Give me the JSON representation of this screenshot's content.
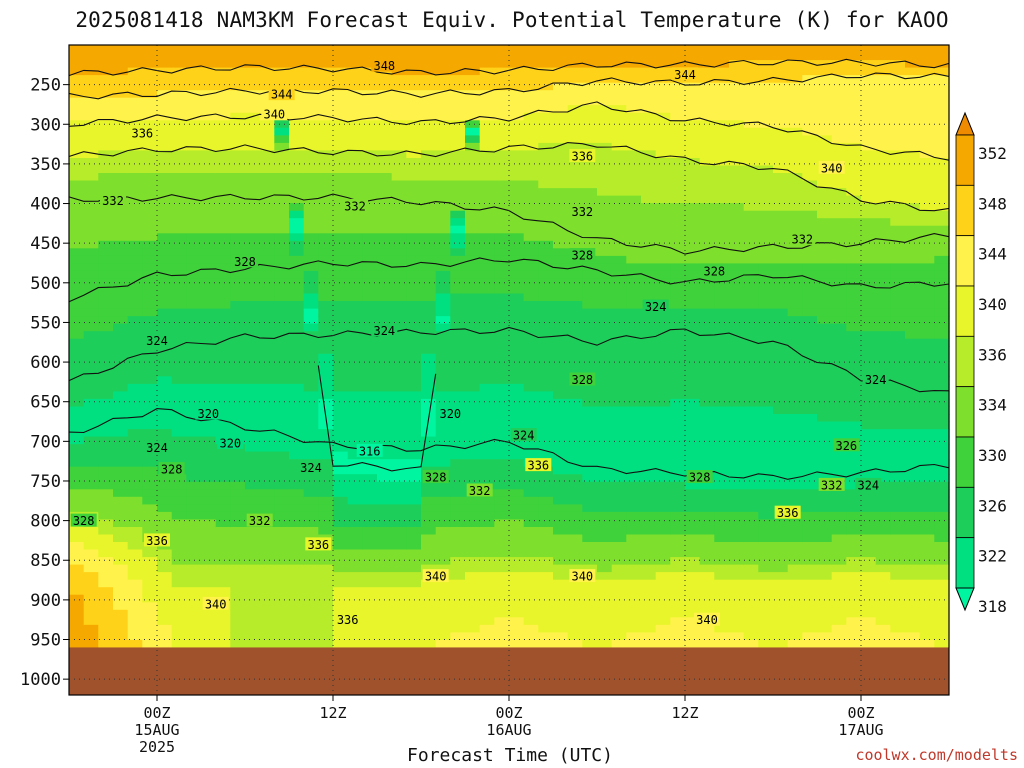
{
  "title": "2025081418 NAM3KM Forecast Equiv. Potential Temperature (K) for KAOO",
  "credit": "coolwx.com/modelts",
  "chart_data": {
    "type": "heatmap",
    "title": "2025081418 NAM3KM Forecast Equiv. Potential Temperature (K) for KAOO",
    "xlabel": "Forecast Time (UTC)",
    "ylabel": "",
    "units": "K",
    "model": "NAM3KM",
    "init": "2025081418",
    "station": "KAOO",
    "y_axis": {
      "inverted": true,
      "range": [
        200,
        1020
      ],
      "ticks": [
        250,
        300,
        350,
        400,
        450,
        500,
        550,
        600,
        650,
        700,
        750,
        800,
        850,
        900,
        950,
        1000
      ]
    },
    "x_axis": {
      "range_hours_after_init": [
        0,
        60
      ],
      "ticks": [
        {
          "hours": 6,
          "lines": [
            "00Z",
            "15AUG",
            "2025"
          ]
        },
        {
          "hours": 18,
          "lines": [
            "12Z"
          ]
        },
        {
          "hours": 30,
          "lines": [
            "00Z",
            "16AUG"
          ]
        },
        {
          "hours": 42,
          "lines": [
            "12Z"
          ]
        },
        {
          "hours": 54,
          "lines": [
            "00Z",
            "17AUG"
          ]
        }
      ]
    },
    "grid": true,
    "colorbar": {
      "levels": [
        318,
        322,
        326,
        330,
        334,
        336,
        340,
        344,
        348,
        352
      ],
      "colors": [
        "#00f5a0",
        "#00e080",
        "#1ece5a",
        "#3fd23a",
        "#7ee02c",
        "#b7ec2a",
        "#e8f52a",
        "#fff24a",
        "#ffd21a",
        "#f5a800",
        "#ee8b00"
      ],
      "extend": "both"
    },
    "below_ground_from_hPa": 960,
    "below_ground_color": "#a0522d",
    "isotherm_profiles": {
      "hours": [
        0,
        6,
        12,
        18,
        24,
        30,
        36,
        42,
        48,
        54,
        60
      ],
      "levels": {
        "348": [
          236,
          232,
          228,
          230,
          235,
          232,
          225,
          225,
          222,
          222,
          226
        ],
        "344": [
          265,
          262,
          258,
          258,
          262,
          258,
          245,
          248,
          245,
          238,
          240
        ],
        "340": [
          300,
          292,
          290,
          292,
          298,
          292,
          275,
          295,
          302,
          330,
          342
        ],
        "336": [
          340,
          332,
          330,
          335,
          338,
          330,
          325,
          345,
          355,
          395,
          410
        ],
        "332": [
          395,
          393,
          392,
          392,
          398,
          410,
          445,
          460,
          455,
          450,
          440
        ],
        "328": [
          520,
          490,
          482,
          475,
          478,
          470,
          485,
          500,
          490,
          505,
          500
        ],
        "324": [
          625,
          585,
          568,
          565,
          562,
          560,
          575,
          560,
          575,
          620,
          640
        ],
        "320": [
          690,
          660,
          682,
          705,
          710,
          700,
          735,
          740,
          745,
          740,
          730
        ],
        "316": [
          0,
          0,
          0,
          728,
          736,
          0,
          0,
          0,
          0,
          0,
          0
        ]
      }
    },
    "surface_profile": {
      "hours": [
        0,
        6,
        12,
        18,
        24,
        30,
        36,
        42,
        48,
        54,
        60
      ],
      "theta_e_K": [
        352,
        342,
        334,
        336,
        340,
        342,
        340,
        342,
        340,
        342,
        340
      ]
    },
    "contour_labels": [
      {
        "text": "348",
        "hours": 21.5,
        "hPa": 226
      },
      {
        "text": "344",
        "hours": 42.0,
        "hPa": 237
      },
      {
        "text": "344",
        "hours": 14.5,
        "hPa": 262
      },
      {
        "text": "340",
        "hours": 14.0,
        "hPa": 287
      },
      {
        "text": "340",
        "hours": 52.0,
        "hPa": 355
      },
      {
        "text": "336",
        "hours": 5.0,
        "hPa": 311
      },
      {
        "text": "336",
        "hours": 35.0,
        "hPa": 340
      },
      {
        "text": "332",
        "hours": 3.0,
        "hPa": 396
      },
      {
        "text": "332",
        "hours": 19.5,
        "hPa": 403
      },
      {
        "text": "332",
        "hours": 35.0,
        "hPa": 410
      },
      {
        "text": "332",
        "hours": 50.0,
        "hPa": 445
      },
      {
        "text": "328",
        "hours": 12.0,
        "hPa": 473
      },
      {
        "text": "328",
        "hours": 35.0,
        "hPa": 465
      },
      {
        "text": "328",
        "hours": 44.0,
        "hPa": 485
      },
      {
        "text": "324",
        "hours": 21.5,
        "hPa": 560
      },
      {
        "text": "324",
        "hours": 40.0,
        "hPa": 530
      },
      {
        "text": "324",
        "hours": 6.0,
        "hPa": 573
      },
      {
        "text": "324",
        "hours": 55.0,
        "hPa": 622
      },
      {
        "text": "328",
        "hours": 35.0,
        "hPa": 622
      },
      {
        "text": "320",
        "hours": 9.5,
        "hPa": 665
      },
      {
        "text": "320",
        "hours": 26.0,
        "hPa": 665
      },
      {
        "text": "320",
        "hours": 11.0,
        "hPa": 702
      },
      {
        "text": "324",
        "hours": 6.0,
        "hPa": 708
      },
      {
        "text": "324",
        "hours": 31.0,
        "hPa": 692
      },
      {
        "text": "316",
        "hours": 20.5,
        "hPa": 712
      },
      {
        "text": "324",
        "hours": 16.5,
        "hPa": 733
      },
      {
        "text": "328",
        "hours": 7.0,
        "hPa": 735
      },
      {
        "text": "328",
        "hours": 25.0,
        "hPa": 745
      },
      {
        "text": "332",
        "hours": 28.0,
        "hPa": 762
      },
      {
        "text": "336",
        "hours": 32.0,
        "hPa": 730
      },
      {
        "text": "328",
        "hours": 43.0,
        "hPa": 745
      },
      {
        "text": "326",
        "hours": 53.0,
        "hPa": 705
      },
      {
        "text": "332",
        "hours": 52.0,
        "hPa": 755
      },
      {
        "text": "324",
        "hours": 54.5,
        "hPa": 755
      },
      {
        "text": "336",
        "hours": 49.0,
        "hPa": 790
      },
      {
        "text": "332",
        "hours": 13.0,
        "hPa": 800
      },
      {
        "text": "328",
        "hours": 1.0,
        "hPa": 800
      },
      {
        "text": "336",
        "hours": 6.0,
        "hPa": 825
      },
      {
        "text": "336",
        "hours": 17.0,
        "hPa": 830
      },
      {
        "text": "340",
        "hours": 25.0,
        "hPa": 870
      },
      {
        "text": "340",
        "hours": 35.0,
        "hPa": 870
      },
      {
        "text": "340",
        "hours": 10.0,
        "hPa": 905
      },
      {
        "text": "336",
        "hours": 19.0,
        "hPa": 925
      },
      {
        "text": "340",
        "hours": 43.5,
        "hPa": 925
      }
    ]
  }
}
